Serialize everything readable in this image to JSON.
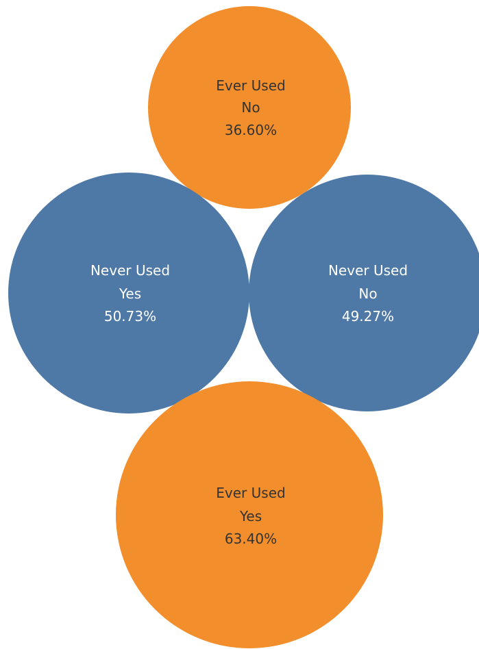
{
  "chart_data": {
    "type": "bubble",
    "title": "",
    "colors": {
      "Ever Used": "#F28E2B",
      "Never Used": "#4E79A7"
    },
    "label_colors": {
      "Ever Used": "#333333",
      "Never Used": "#ffffff"
    },
    "bubbles": [
      {
        "group": "Ever Used",
        "answer": "No",
        "percent_label": "36.60%",
        "value": 36.6
      },
      {
        "group": "Never Used",
        "answer": "Yes",
        "percent_label": "50.73%",
        "value": 50.73
      },
      {
        "group": "Never Used",
        "answer": "No",
        "percent_label": "49.27%",
        "value": 49.27
      },
      {
        "group": "Ever Used",
        "answer": "Yes",
        "percent_label": "63.40%",
        "value": 63.4
      }
    ]
  }
}
